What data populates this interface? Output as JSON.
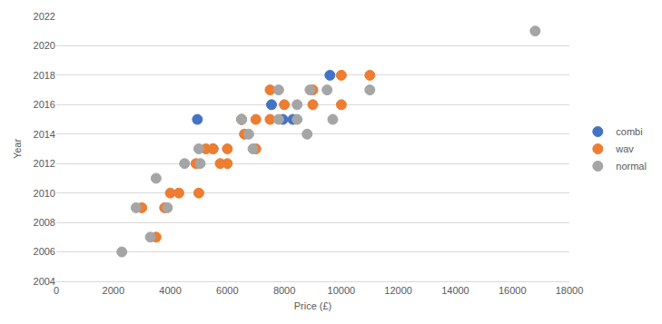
{
  "chart_data": {
    "type": "scatter",
    "x_label": "Price (£)",
    "y_label": "Year",
    "xlim": [
      0,
      18000
    ],
    "xticks": [
      0,
      2000,
      4000,
      6000,
      8000,
      10000,
      12000,
      14000,
      16000,
      18000
    ],
    "ylim": [
      2004,
      2022
    ],
    "yticks": [
      2004,
      2006,
      2008,
      2010,
      2012,
      2014,
      2016,
      2018,
      2020,
      2022
    ],
    "grid": true,
    "legend": "right",
    "marker": "circle",
    "series": [
      {
        "name": "combi",
        "color": "#4472c4",
        "x": [
          4950,
          7550,
          7950,
          8300,
          9600,
          6500,
          5500
        ],
        "values": [
          2015,
          2016,
          2015,
          2015,
          2018,
          2015,
          2013
        ]
      },
      {
        "name": "wav",
        "color": "#ed7d31",
        "x": [
          3000,
          3500,
          3800,
          4000,
          4300,
          5000,
          4900,
          5250,
          5500,
          5750,
          6000,
          6000,
          6500,
          6600,
          7000,
          7000,
          7500,
          7500,
          8000,
          9000,
          9000,
          10000,
          10000,
          11000
        ],
        "values": [
          2009,
          2007,
          2009,
          2010,
          2010,
          2010,
          2012,
          2013,
          2013,
          2012,
          2012,
          2013,
          2015,
          2014,
          2015,
          2013,
          2017,
          2015,
          2016,
          2017,
          2016,
          2018,
          2016,
          2018
        ]
      },
      {
        "name": "normal",
        "color": "#a5a5a5",
        "x": [
          2300,
          2800,
          3300,
          3500,
          3900,
          4500,
          5000,
          5050,
          6500,
          6750,
          6900,
          7800,
          7800,
          8450,
          8450,
          8800,
          8900,
          9500,
          9700,
          11000,
          16800
        ],
        "values": [
          2006,
          2009,
          2007,
          2011,
          2009,
          2012,
          2013,
          2012,
          2015,
          2014,
          2013,
          2017,
          2015,
          2016,
          2015,
          2014,
          2017,
          2017,
          2015,
          2017,
          2021
        ]
      }
    ]
  }
}
